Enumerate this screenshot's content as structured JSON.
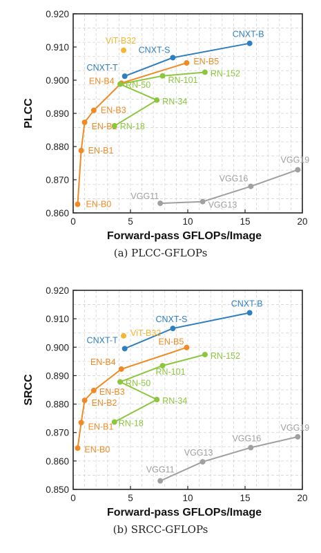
{
  "chart_data": [
    {
      "type": "line",
      "caption": "(a) PLCC-GFLOPs",
      "xlabel": "Forward-pass GFLOPs/Image",
      "ylabel": "PLCC",
      "xlim": [
        0,
        20
      ],
      "ylim": [
        0.86,
        0.92
      ],
      "xticks": [
        "0",
        "5",
        "10",
        "15",
        "20"
      ],
      "yticks": [
        "0.860",
        "0.870",
        "0.880",
        "0.890",
        "0.900",
        "0.910",
        "0.920"
      ],
      "grid": true,
      "series": [
        {
          "key": "en",
          "color": "#f08a24",
          "points": [
            {
              "label": "EN-B0",
              "x": 0.39,
              "y": 0.8626
            },
            {
              "label": "EN-B1",
              "x": 0.7,
              "y": 0.8788
            },
            {
              "label": "EN-B2",
              "x": 1.0,
              "y": 0.8873
            },
            {
              "label": "EN-B3",
              "x": 1.8,
              "y": 0.8909
            },
            {
              "label": "EN-B4",
              "x": 4.2,
              "y": 0.8991
            },
            {
              "label": "EN-B5",
              "x": 9.9,
              "y": 0.9052
            }
          ]
        },
        {
          "key": "rn",
          "color": "#8cc63f",
          "points": [
            {
              "label": "RN-18",
              "x": 3.6,
              "y": 0.8862
            },
            {
              "label": "RN-34",
              "x": 7.3,
              "y": 0.894
            },
            {
              "label": "RN-50",
              "x": 4.1,
              "y": 0.8988
            },
            {
              "label": "RN-101",
              "x": 7.8,
              "y": 0.9013
            },
            {
              "label": "RN-152",
              "x": 11.5,
              "y": 0.9024
            }
          ]
        },
        {
          "key": "cnxt",
          "color": "#2f7fbf",
          "points": [
            {
              "label": "CNXT-T",
              "x": 4.5,
              "y": 0.9012
            },
            {
              "label": "CNXT-S",
              "x": 8.7,
              "y": 0.9068
            },
            {
              "label": "CNXT-B",
              "x": 15.4,
              "y": 0.9111
            }
          ]
        },
        {
          "key": "vit",
          "color": "#f5b731",
          "points": [
            {
              "label": "ViT-B32",
              "x": 4.4,
              "y": 0.909
            }
          ]
        },
        {
          "key": "vgg",
          "color": "#a0a0a0",
          "points": [
            {
              "label": "VGG11",
              "x": 7.6,
              "y": 0.8629
            },
            {
              "label": "VGG13",
              "x": 11.3,
              "y": 0.8634
            },
            {
              "label": "VGG16",
              "x": 15.5,
              "y": 0.868
            },
            {
              "label": "VGG19",
              "x": 19.6,
              "y": 0.873
            }
          ]
        }
      ]
    },
    {
      "type": "line",
      "caption": "(b) SRCC-GFLOPs",
      "xlabel": "Forward-pass GFLOPs/Image",
      "ylabel": "SRCC",
      "xlim": [
        0,
        20
      ],
      "ylim": [
        0.85,
        0.92
      ],
      "xticks": [
        "0",
        "5",
        "10",
        "15",
        "20"
      ],
      "yticks": [
        "0.850",
        "0.860",
        "0.870",
        "0.880",
        "0.890",
        "0.900",
        "0.910",
        "0.920"
      ],
      "grid": true,
      "series": [
        {
          "key": "en",
          "color": "#f08a24",
          "points": [
            {
              "label": "EN-B0",
              "x": 0.39,
              "y": 0.8645
            },
            {
              "label": "EN-B1",
              "x": 0.7,
              "y": 0.8735
            },
            {
              "label": "EN-B2",
              "x": 1.0,
              "y": 0.8813
            },
            {
              "label": "EN-B3",
              "x": 1.8,
              "y": 0.8848
            },
            {
              "label": "EN-B4",
              "x": 4.2,
              "y": 0.8923
            },
            {
              "label": "EN-B5",
              "x": 9.9,
              "y": 0.8999
            }
          ]
        },
        {
          "key": "rn",
          "color": "#8cc63f",
          "points": [
            {
              "label": "RN-18",
              "x": 3.6,
              "y": 0.8737
            },
            {
              "label": "RN-34",
              "x": 7.3,
              "y": 0.8816
            },
            {
              "label": "RN-50",
              "x": 4.1,
              "y": 0.8878
            },
            {
              "label": "RN-101",
              "x": 7.8,
              "y": 0.8935
            },
            {
              "label": "RN-152",
              "x": 11.5,
              "y": 0.8974
            }
          ]
        },
        {
          "key": "cnxt",
          "color": "#2f7fbf",
          "points": [
            {
              "label": "CNXT-T",
              "x": 4.5,
              "y": 0.8995
            },
            {
              "label": "CNXT-S",
              "x": 8.7,
              "y": 0.9066
            },
            {
              "label": "CNXT-B",
              "x": 15.4,
              "y": 0.9121
            }
          ]
        },
        {
          "key": "vit",
          "color": "#f5b731",
          "points": [
            {
              "label": "ViT-B32",
              "x": 4.4,
              "y": 0.904
            }
          ]
        },
        {
          "key": "vgg",
          "color": "#a0a0a0",
          "points": [
            {
              "label": "VGG11",
              "x": 7.6,
              "y": 0.853
            },
            {
              "label": "VGG13",
              "x": 11.3,
              "y": 0.8597
            },
            {
              "label": "VGG16",
              "x": 15.5,
              "y": 0.8647
            },
            {
              "label": "VGG19",
              "x": 19.6,
              "y": 0.8685
            }
          ]
        }
      ]
    }
  ]
}
